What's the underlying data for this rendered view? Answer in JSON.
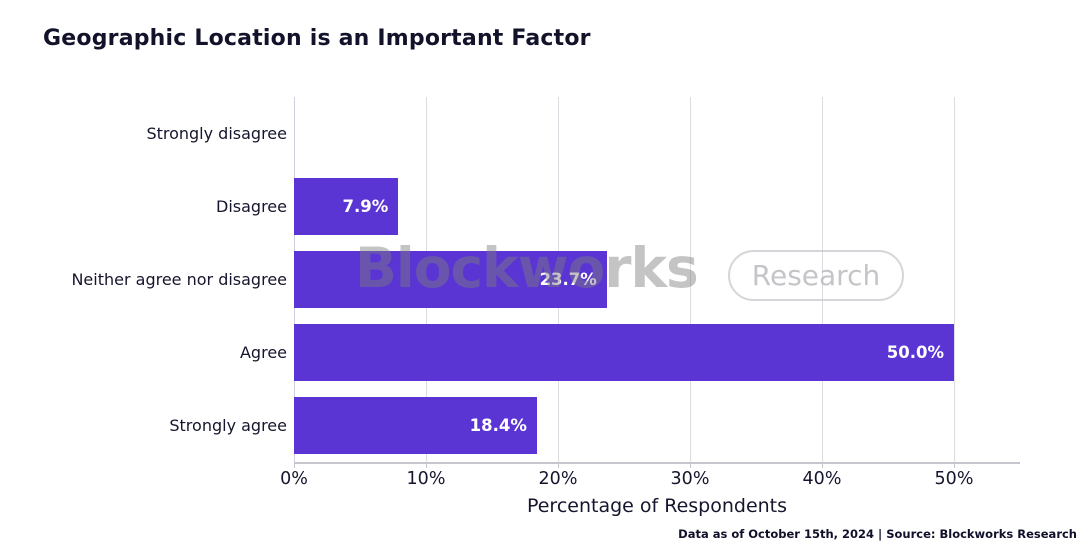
{
  "watermark": {
    "brand": "Blockworks",
    "badge": "Research"
  },
  "footer": {
    "note": "Data as of October 15th, 2024 | Source: Blockworks Research"
  },
  "chart_data": {
    "type": "bar",
    "orientation": "horizontal",
    "title": "Geographic Location is an Important Factor",
    "xlabel": "Percentage of Respondents",
    "ylabel": "",
    "categories": [
      "Strongly disagree",
      "Disagree",
      "Neither agree nor disagree",
      "Agree",
      "Strongly agree"
    ],
    "values": [
      0,
      7.9,
      23.7,
      50.0,
      18.4
    ],
    "bar_labels": [
      "",
      "7.9%",
      "23.7%",
      "50.0%",
      "18.4%"
    ],
    "xlim": [
      0,
      55
    ],
    "xticks": [
      0,
      10,
      20,
      30,
      40,
      50
    ],
    "xtick_labels": [
      "0%",
      "10%",
      "20%",
      "30%",
      "40%",
      "50%"
    ],
    "grid": "vertical",
    "legend": "none",
    "bar_color": "#5a35d4",
    "text_color": "#15152d",
    "grid_color": "#dcdce2",
    "value_label_color": "#ffffff"
  }
}
